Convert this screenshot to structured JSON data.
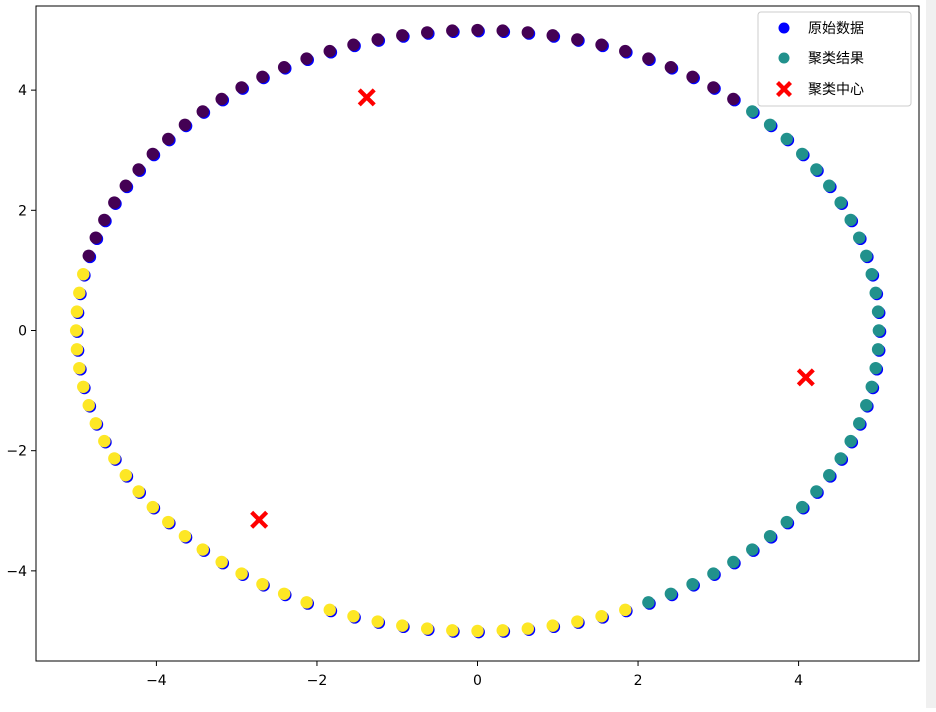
{
  "chart_data": {
    "type": "scatter",
    "title": "",
    "xlabel": "",
    "ylabel": "",
    "xlim": [
      -5.5,
      5.5
    ],
    "ylim": [
      -5.5,
      5.4
    ],
    "xticks": [
      -4,
      -2,
      0,
      2,
      4
    ],
    "yticks": [
      -4,
      -2,
      0,
      2,
      4
    ],
    "grid": false,
    "legend_position": "top-right",
    "colors": {
      "original": "#0000ff",
      "cluster_0": "#440154",
      "cluster_1": "#21918c",
      "cluster_2": "#fde725",
      "center": "#ff0000"
    },
    "series": [
      {
        "name": "原始数据",
        "marker": "circle",
        "note_points": "100 points on circle of radius 5, angle 2*pi*i/100"
      },
      {
        "name": "聚类结果",
        "marker": "circle",
        "labels_by_angle_range": [
          {
            "cluster": 1,
            "from_deg": -68,
            "to_deg": 47
          },
          {
            "cluster": 0,
            "from_deg": 47,
            "to_deg": 167
          },
          {
            "cluster": 2,
            "from_deg": 167,
            "to_deg": 292
          }
        ]
      },
      {
        "name": "聚类中心",
        "marker": "x",
        "points": [
          {
            "x": -1.38,
            "y": 3.88
          },
          {
            "x": 4.09,
            "y": -0.78
          },
          {
            "x": -2.72,
            "y": -3.15
          }
        ]
      }
    ]
  }
}
